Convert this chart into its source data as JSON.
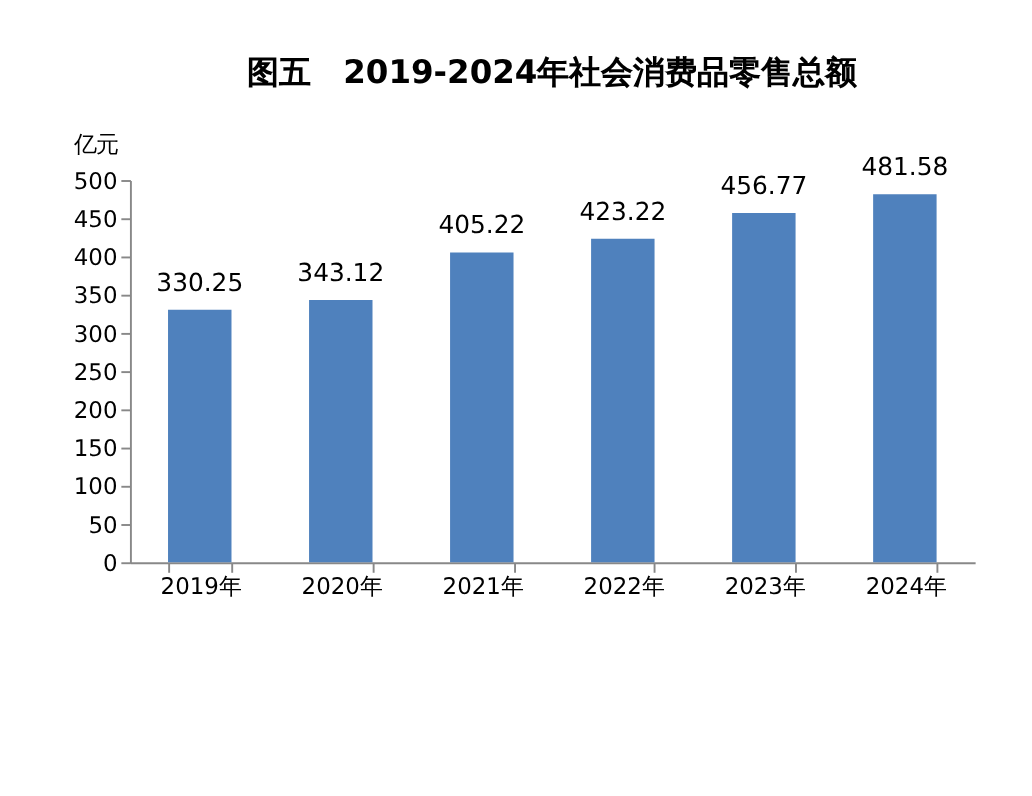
{
  "chart_data": {
    "type": "bar",
    "title": "图五　2019-2024年社会消费品零售总额",
    "ylabel": "亿元",
    "categories": [
      "2019年",
      "2020年",
      "2021年",
      "2022年",
      "2023年",
      "2024年"
    ],
    "values": [
      330.25,
      343.12,
      405.22,
      423.22,
      456.77,
      481.58
    ],
    "color": "#4f81bd",
    "ylim": [
      0,
      500
    ],
    "yticks": [
      0,
      50,
      100,
      150,
      200,
      250,
      300,
      350,
      400,
      450,
      500
    ],
    "data_labels": true,
    "grid": false
  }
}
